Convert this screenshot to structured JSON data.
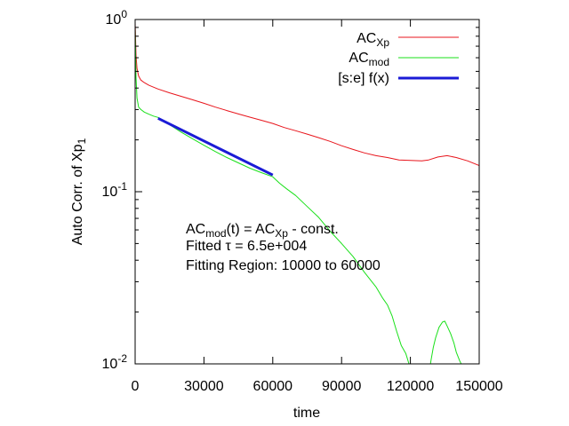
{
  "chart_data": {
    "type": "line",
    "xlabel": "time",
    "ylabel": "Auto Corr. of Xp",
    "ylabel_sub": "1",
    "xlim": [
      0,
      150000
    ],
    "ylim": [
      0.01,
      1
    ],
    "yscale": "log",
    "grid": false,
    "legend_position": "top-right",
    "x_ticks": [
      {
        "value": 0,
        "label": "0"
      },
      {
        "value": 30000,
        "label": "30000"
      },
      {
        "value": 60000,
        "label": "60000"
      },
      {
        "value": 90000,
        "label": "90000"
      },
      {
        "value": 120000,
        "label": "120000"
      },
      {
        "value": 150000,
        "label": "150000"
      }
    ],
    "y_ticks": [
      {
        "value": 1,
        "base": "10",
        "exp": "0"
      },
      {
        "value": 0.1,
        "base": "10",
        "exp": "-1"
      },
      {
        "value": 0.01,
        "base": "10",
        "exp": "-2"
      }
    ],
    "series": [
      {
        "name": "AC",
        "name_sub": "Xp",
        "color": "#e8151c",
        "width": 1,
        "x": [
          0,
          400,
          800,
          1500,
          2500,
          4000,
          6000,
          8000,
          10000,
          15000,
          20000,
          25000,
          30000,
          35000,
          40000,
          45000,
          50000,
          55000,
          60000,
          65000,
          70000,
          75000,
          80000,
          85000,
          90000,
          95000,
          100000,
          105000,
          110000,
          115000,
          120000,
          125000,
          128000,
          132000,
          136000,
          140000,
          145000,
          150000
        ],
        "y": [
          0.95,
          0.62,
          0.52,
          0.47,
          0.445,
          0.43,
          0.415,
          0.405,
          0.395,
          0.375,
          0.358,
          0.342,
          0.326,
          0.31,
          0.296,
          0.283,
          0.271,
          0.26,
          0.249,
          0.236,
          0.226,
          0.216,
          0.206,
          0.196,
          0.185,
          0.176,
          0.168,
          0.162,
          0.158,
          0.153,
          0.152,
          0.151,
          0.153,
          0.159,
          0.162,
          0.158,
          0.151,
          0.142
        ]
      },
      {
        "name": "AC",
        "name_sub": "mod",
        "color": "#19e019",
        "width": 1,
        "x": [
          0,
          400,
          800,
          1500,
          2500,
          4000,
          6000,
          8000,
          10000,
          15000,
          20000,
          25000,
          30000,
          35000,
          40000,
          45000,
          50000,
          55000,
          60000,
          63000,
          66000,
          70000,
          75000,
          80000,
          85000,
          90000,
          95000,
          100000,
          105000,
          108000,
          110000,
          112000,
          114000,
          116000,
          118000,
          120000,
          121500,
          123000,
          124000,
          125500,
          127000,
          128500,
          129000,
          130000,
          131000,
          132500,
          134000,
          135000,
          136000,
          137500,
          139000,
          140000,
          141500,
          143000
        ],
        "y": [
          0.9,
          0.46,
          0.35,
          0.31,
          0.3,
          0.29,
          0.282,
          0.275,
          0.27,
          0.245,
          0.222,
          0.203,
          0.186,
          0.171,
          0.158,
          0.147,
          0.137,
          0.129,
          0.122,
          0.112,
          0.104,
          0.095,
          0.082,
          0.071,
          0.059,
          0.05,
          0.042,
          0.034,
          0.028,
          0.024,
          0.022,
          0.019,
          0.0155,
          0.0128,
          0.0115,
          0.0094,
          0.0089,
          0.0095,
          0.0092,
          0.0088,
          0.009,
          0.0095,
          0.0105,
          0.0125,
          0.0142,
          0.0163,
          0.0175,
          0.0177,
          0.0166,
          0.015,
          0.0132,
          0.0117,
          0.0104,
          0.0095
        ]
      },
      {
        "name": "[s:e] f(x)",
        "color": "#1b1bd6",
        "width": 3,
        "x": [
          10000,
          60000
        ],
        "y": [
          0.267,
          0.125
        ]
      }
    ],
    "annotations": {
      "line1": {
        "a": "AC",
        "a_sub": "mod",
        "b": "(t) = AC",
        "b_sub": "Xp",
        "c": " - const."
      },
      "line2": {
        "a": "Fitted ",
        "tau": "τ",
        "b": " = 6.5e+004"
      },
      "line3": "Fitting Region: 10000 to 60000"
    }
  }
}
